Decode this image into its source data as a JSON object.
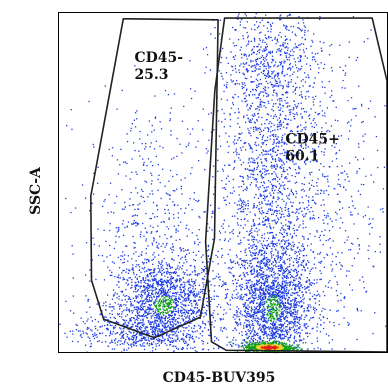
{
  "chart_data": {
    "type": "scatter",
    "title": "",
    "xlabel": "CD45-BUV395",
    "ylabel": "SSC-A",
    "grid": false,
    "xlim": [
      0,
      100
    ],
    "ylim": [
      0,
      100
    ],
    "gates": [
      {
        "name": "CD45-",
        "value": "25.3",
        "vertices": [
          [
            19.6,
            98.3
          ],
          [
            48.5,
            98.0
          ],
          [
            47.4,
            33.5
          ],
          [
            43.1,
            10.3
          ],
          [
            29.1,
            4.2
          ],
          [
            13.6,
            9.7
          ],
          [
            9.9,
            21.2
          ],
          [
            9.7,
            46.0
          ]
        ],
        "label_at": [
          23.0,
          85.5
        ]
      },
      {
        "name": "CD45+",
        "value": "60.1",
        "vertices": [
          [
            50.5,
            98.5
          ],
          [
            95.5,
            98.5
          ],
          [
            100.0,
            80.0
          ],
          [
            100.0,
            0.0
          ],
          [
            51.0,
            0.5
          ],
          [
            46.5,
            3.0
          ],
          [
            44.7,
            32.5
          ],
          [
            47.5,
            77.0
          ]
        ],
        "label_at": [
          69.0,
          61.5
        ]
      }
    ],
    "populations": [
      {
        "cx": 32,
        "cy": 14,
        "sx": 8,
        "sy": 7,
        "n": 1500
      },
      {
        "cx": 28,
        "cy": 35,
        "sx": 10,
        "sy": 20,
        "n": 600
      },
      {
        "cx": 22,
        "cy": 6,
        "sx": 9,
        "sy": 3,
        "n": 350
      },
      {
        "cx": 65,
        "cy": 13,
        "sx": 6,
        "sy": 10,
        "n": 1900
      },
      {
        "cx": 64,
        "cy": 55,
        "sx": 8,
        "sy": 26,
        "n": 1800
      },
      {
        "cx": 65,
        "cy": 88,
        "sx": 7,
        "sy": 7,
        "n": 300
      },
      {
        "cx": 82,
        "cy": 40,
        "sx": 9,
        "sy": 25,
        "n": 450
      },
      {
        "cx": 64,
        "cy": 1.5,
        "sx": 3.5,
        "sy": 0.8,
        "n": 800
      }
    ],
    "density_colors": {
      "low": "#1f3de0",
      "mid": "#13a313",
      "high_yellow": "#f2d22a",
      "high_red": "#e0251a"
    }
  }
}
